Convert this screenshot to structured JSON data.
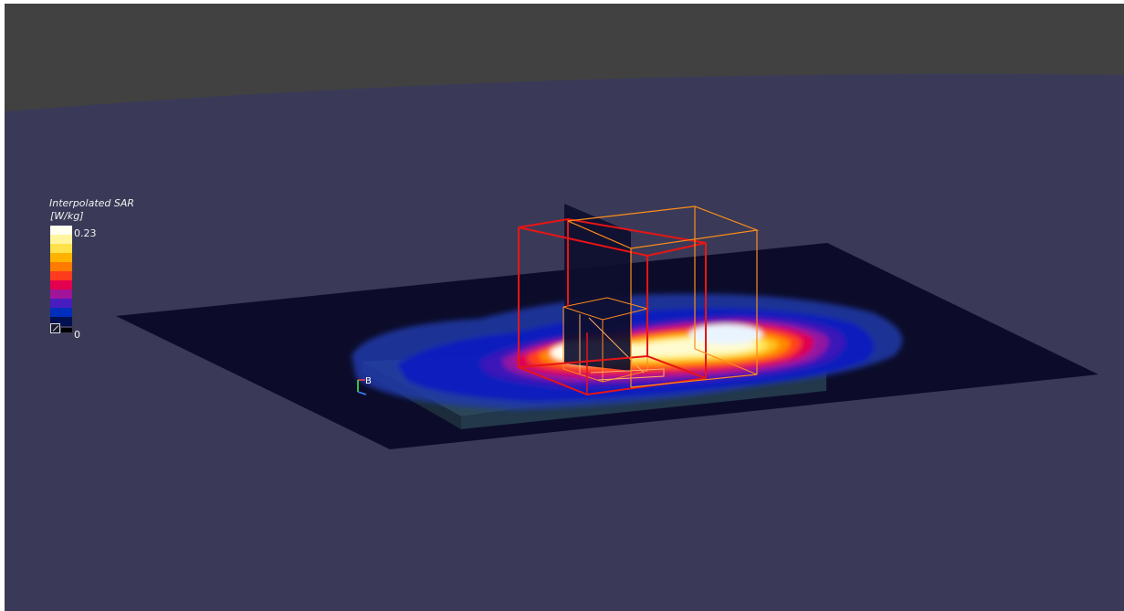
{
  "legend": {
    "title": "Interpolated SAR",
    "unit": "[W/kg]",
    "max_label": "0.23",
    "min_label": "0",
    "colors": [
      "#fffff0",
      "#fff59d",
      "#ffe14a",
      "#ffb300",
      "#ff7a00",
      "#ff3b1e",
      "#e3004f",
      "#a0149a",
      "#4a1cc0",
      "#002ebd",
      "#001050"
    ]
  },
  "axis_triad": {
    "label": "B"
  },
  "colors": {
    "background_upper": "#414141",
    "background_lower": "#3a3a58",
    "ground_plane": "#0c0c2a",
    "phantom_slab": "#2e4a5a",
    "box_red": "#e81515",
    "box_orange": "#ff8c1a"
  }
}
